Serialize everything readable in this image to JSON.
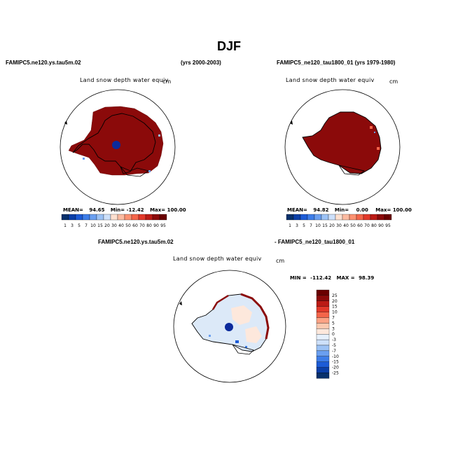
{
  "page": {
    "title": "DJF",
    "header_left": "FAMIPC5.ne120.ys.tau5m.02",
    "header_mid": "(yrs 2000-2003)",
    "header_right": "FAMIPC5_ne120_tau1800_01 (yrs 1979-1980)",
    "diff_label_left": "FAMIPC5.ne120.ys.tau5m.02",
    "diff_label_right": "- FAMIPC5_ne120_tau1800_01"
  },
  "colors": {
    "seq_palette": [
      "#08306b",
      "#0b3fa8",
      "#1c5bd6",
      "#3d7de8",
      "#6a9ff0",
      "#9cc2f5",
      "#cde0fa",
      "#fde0d0",
      "#fcbba1",
      "#fc9272",
      "#f4654a",
      "#e2392a",
      "#bb1b15",
      "#8b0a0a",
      "#6a0000"
    ],
    "div_palette": [
      "#08306b",
      "#0b3fa8",
      "#1c5bd6",
      "#3d7de8",
      "#6a9ff0",
      "#9cc2f5",
      "#cde0fa",
      "#e6f0fc",
      "#fde8dc",
      "#fcc9b0",
      "#fca284",
      "#f4654a",
      "#e2392a",
      "#bb1b15",
      "#8b0a0a",
      "#6a0000"
    ],
    "land_dark": "#8b0000",
    "land_light": "#dce9f8"
  },
  "chart_data": [
    {
      "type": "heatmap",
      "title": "Land snow depth water equiv",
      "units": "cm",
      "projection": "polar stereographic (south pole)",
      "stats": {
        "mean_label": "MEAN=",
        "mean": "94.65",
        "min_label": "Min=",
        "min": "-12.42",
        "max_label": "Max=",
        "max": "100.00"
      },
      "colorbar": {
        "orientation": "horizontal",
        "levels": [
          "1",
          "3",
          "5",
          "7",
          "10",
          "15",
          "20",
          "30",
          "40",
          "50",
          "60",
          "70",
          "80",
          "90",
          "95"
        ]
      }
    },
    {
      "type": "heatmap",
      "title": "Land snow depth water equiv",
      "units": "cm",
      "projection": "polar stereographic (south pole)",
      "stats": {
        "mean_label": "MEAN=",
        "mean": "94.82",
        "min_label": "Min=",
        "min": "0.00",
        "max_label": "Max=",
        "max": "100.00"
      },
      "colorbar": {
        "orientation": "horizontal",
        "levels": [
          "1",
          "3",
          "5",
          "7",
          "10",
          "15",
          "20",
          "30",
          "40",
          "50",
          "60",
          "70",
          "80",
          "90",
          "95"
        ]
      }
    },
    {
      "type": "heatmap",
      "title": "Land snow depth water equiv",
      "units": "cm",
      "projection": "polar stereographic (south pole)",
      "stats": {
        "min_label": "MIN =",
        "min": "-112.42",
        "max_label": "MAX =",
        "max": "98.39"
      },
      "colorbar": {
        "orientation": "vertical",
        "levels": [
          "25",
          "20",
          "15",
          "10",
          "7",
          "5",
          "3",
          "0",
          "-3",
          "-5",
          "-7",
          "-10",
          "-15",
          "-20",
          "-25"
        ]
      }
    }
  ]
}
